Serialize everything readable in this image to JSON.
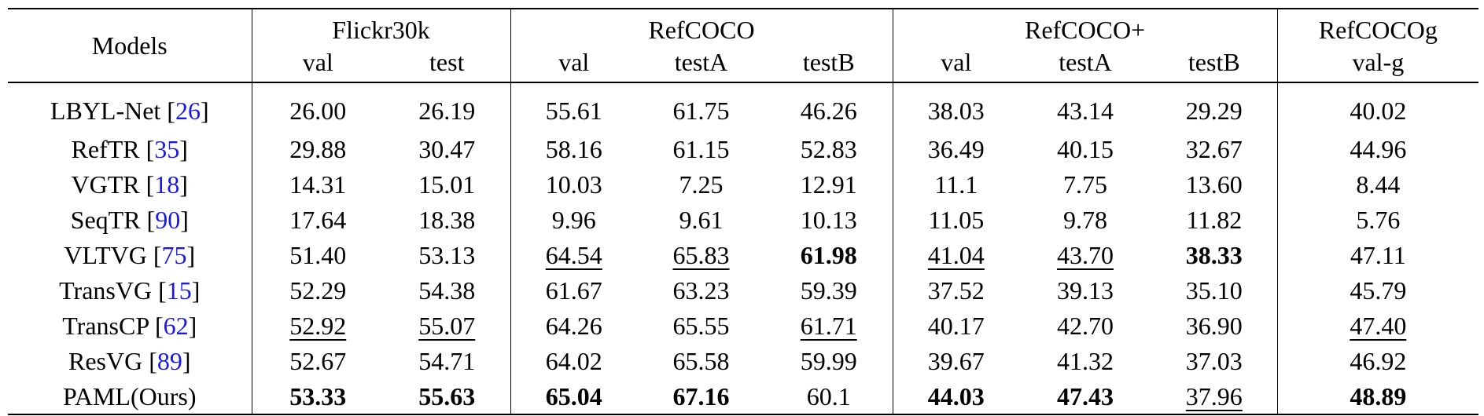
{
  "header": {
    "models_label": "Models",
    "groups": [
      {
        "name": "Flickr30k",
        "subcols": [
          "val",
          "test"
        ]
      },
      {
        "name": "RefCOCO",
        "subcols": [
          "val",
          "testA",
          "testB"
        ]
      },
      {
        "name": "RefCOCO+",
        "subcols": [
          "val",
          "testA",
          "testB"
        ]
      },
      {
        "name": "RefCOCOg",
        "subcols": [
          "val-g"
        ]
      }
    ]
  },
  "rows": [
    {
      "model": "LBYL-Net",
      "cite": "26",
      "values": [
        "26.00",
        "26.19",
        "55.61",
        "61.75",
        "46.26",
        "38.03",
        "43.14",
        "29.29",
        "40.02"
      ],
      "style": [
        "",
        "",
        "",
        "",
        "",
        "",
        "",
        "",
        ""
      ]
    },
    {
      "model": "RefTR",
      "cite": "35",
      "values": [
        "29.88",
        "30.47",
        "58.16",
        "61.15",
        "52.83",
        "36.49",
        "40.15",
        "32.67",
        "44.96"
      ],
      "style": [
        "",
        "",
        "",
        "",
        "",
        "",
        "",
        "",
        ""
      ]
    },
    {
      "model": "VGTR",
      "cite": "18",
      "values": [
        "14.31",
        "15.01",
        "10.03",
        "7.25",
        "12.91",
        "11.1",
        "7.75",
        "13.60",
        "8.44"
      ],
      "style": [
        "",
        "",
        "",
        "",
        "",
        "",
        "",
        "",
        ""
      ]
    },
    {
      "model": "SeqTR",
      "cite": "90",
      "values": [
        "17.64",
        "18.38",
        "9.96",
        "9.61",
        "10.13",
        "11.05",
        "9.78",
        "11.82",
        "5.76"
      ],
      "style": [
        "",
        "",
        "",
        "",
        "",
        "",
        "",
        "",
        ""
      ]
    },
    {
      "model": "VLTVG",
      "cite": "75",
      "values": [
        "51.40",
        "53.13",
        "64.54",
        "65.83",
        "61.98",
        "41.04",
        "43.70",
        "38.33",
        "47.11"
      ],
      "style": [
        "",
        "",
        "second",
        "second",
        "best",
        "second",
        "second",
        "best",
        ""
      ]
    },
    {
      "model": "TransVG",
      "cite": "15",
      "values": [
        "52.29",
        "54.38",
        "61.67",
        "63.23",
        "59.39",
        "37.52",
        "39.13",
        "35.10",
        "45.79"
      ],
      "style": [
        "",
        "",
        "",
        "",
        "",
        "",
        "",
        "",
        ""
      ]
    },
    {
      "model": "TransCP",
      "cite": "62",
      "values": [
        "52.92",
        "55.07",
        "64.26",
        "65.55",
        "61.71",
        "40.17",
        "42.70",
        "36.90",
        "47.40"
      ],
      "style": [
        "second",
        "second",
        "",
        "",
        "second",
        "",
        "",
        "",
        "second"
      ]
    },
    {
      "model": "ResVG",
      "cite": "89",
      "values": [
        "52.67",
        "54.71",
        "64.02",
        "65.58",
        "59.99",
        "39.67",
        "41.32",
        "37.03",
        "46.92"
      ],
      "style": [
        "",
        "",
        "",
        "",
        "",
        "",
        "",
        "",
        ""
      ]
    },
    {
      "model": "PAML(Ours)",
      "cite": "",
      "values": [
        "53.33",
        "55.63",
        "65.04",
        "67.16",
        "60.1",
        "44.03",
        "47.43",
        "37.96",
        "48.89"
      ],
      "style": [
        "best",
        "best",
        "best",
        "best",
        "",
        "best",
        "best",
        "second",
        "best"
      ]
    }
  ]
}
